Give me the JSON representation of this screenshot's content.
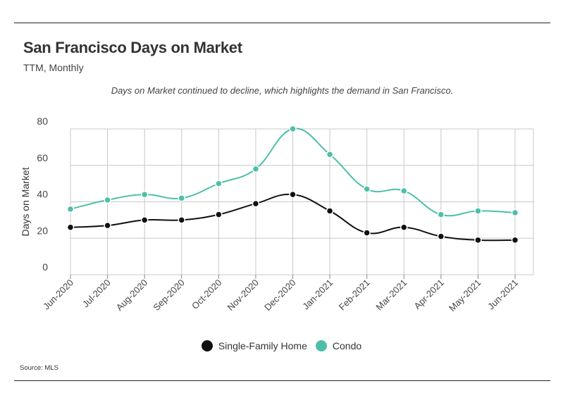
{
  "header": {
    "title": "San Francisco Days on Market",
    "subtitle": "TTM, Monthly",
    "note": "Days on Market continued to decline, which highlights the demand in San Francisco."
  },
  "footer": {
    "source": "Source:  MLS"
  },
  "colors": {
    "single_family": "#111111",
    "condo": "#4dbfa8",
    "grid": "#c8c8c8",
    "axis": "#888888"
  },
  "chart_data": {
    "type": "line",
    "categories": [
      "Jun-2020",
      "Jul-2020",
      "Aug-2020",
      "Sep-2020",
      "Oct-2020",
      "Nov-2020",
      "Dec-2020",
      "Jan-2021",
      "Feb-2021",
      "Mar-2021",
      "Apr-2021",
      "May-2021",
      "Jun-2021"
    ],
    "series": [
      {
        "name": "Single-Family Home",
        "values": [
          26,
          27,
          30,
          30,
          33,
          39,
          44,
          35,
          23,
          26,
          21,
          19,
          19
        ]
      },
      {
        "name": "Condo",
        "values": [
          36,
          41,
          44,
          42,
          50,
          58,
          80,
          66,
          47,
          46,
          33,
          35,
          34
        ]
      }
    ],
    "ylabel": "Days on Market",
    "yticks": [
      0,
      20,
      40,
      60,
      80
    ],
    "ylim": [
      0,
      80
    ],
    "grid": true,
    "legend_position": "bottom"
  }
}
